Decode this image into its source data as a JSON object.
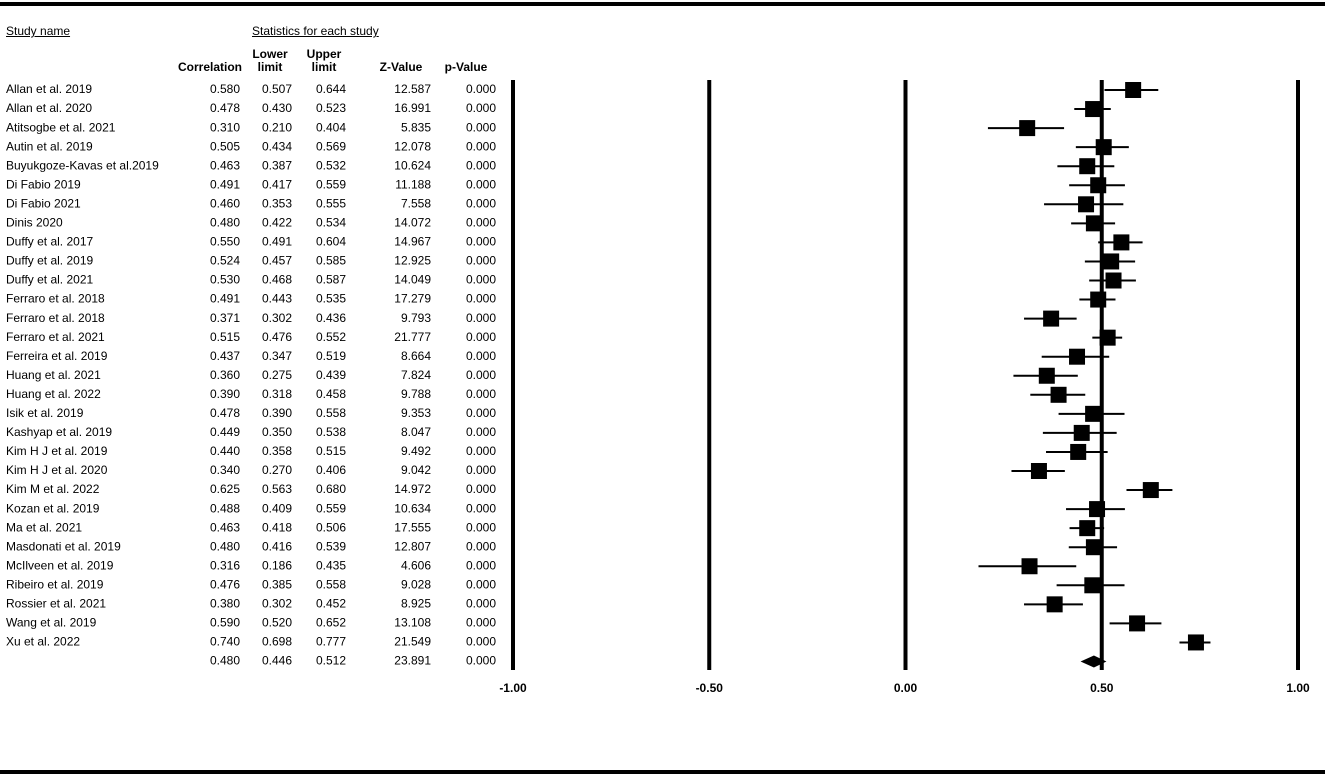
{
  "chart_data": {
    "type": "forest",
    "study_header": "Study name",
    "stats_header": "Statistics for each study",
    "categories": [
      "Allan et al. 2019",
      "Allan et al. 2020",
      "Atitsogbe et al. 2021",
      "Autin et al. 2019",
      "Buyukgoze-Kavas et al.2019",
      "Di Fabio 2019",
      "Di Fabio 2021",
      "Dinis 2020",
      "Duffy et al. 2017",
      "Duffy et al. 2019",
      "Duffy et al. 2021",
      "Ferraro et al. 2018",
      "Ferraro et al. 2018",
      "Ferraro et al. 2021",
      "Ferreira et al. 2019",
      "Huang et al. 2021",
      "Huang et al. 2022",
      "Isik et al. 2019",
      "Kashyap et al. 2019",
      "Kim H J et al. 2019",
      "Kim H J et al. 2020",
      "Kim M et al. 2022",
      "Kozan et al. 2019",
      "Ma et al. 2021",
      "Masdonati et al. 2019",
      "McIlveen et al. 2019",
      "Ribeiro et al. 2019",
      "Rossier et al. 2021",
      "Wang et al. 2019",
      "Xu et al. 2022"
    ],
    "columns": [
      {
        "name": "Correlation",
        "values": [
          0.58,
          0.478,
          0.31,
          0.505,
          0.463,
          0.491,
          0.46,
          0.48,
          0.55,
          0.524,
          0.53,
          0.491,
          0.371,
          0.515,
          0.437,
          0.36,
          0.39,
          0.478,
          0.449,
          0.44,
          0.34,
          0.625,
          0.488,
          0.463,
          0.48,
          0.316,
          0.476,
          0.38,
          0.59,
          0.74
        ],
        "value_labels": [
          "0.580",
          "0.478",
          "0.310",
          "0.505",
          "0.463",
          "0.491",
          "0.460",
          "0.480",
          "0.550",
          "0.524",
          "0.530",
          "0.491",
          "0.371",
          "0.515",
          "0.437",
          "0.360",
          "0.390",
          "0.478",
          "0.449",
          "0.440",
          "0.340",
          "0.625",
          "0.488",
          "0.463",
          "0.480",
          "0.316",
          "0.476",
          "0.380",
          "0.590",
          "0.740"
        ]
      },
      {
        "name": "Lower limit",
        "values": [
          0.507,
          0.43,
          0.21,
          0.434,
          0.387,
          0.417,
          0.353,
          0.422,
          0.491,
          0.457,
          0.468,
          0.443,
          0.302,
          0.476,
          0.347,
          0.275,
          0.318,
          0.39,
          0.35,
          0.358,
          0.27,
          0.563,
          0.409,
          0.418,
          0.416,
          0.186,
          0.385,
          0.302,
          0.52,
          0.698
        ],
        "value_labels": [
          "0.507",
          "0.430",
          "0.210",
          "0.434",
          "0.387",
          "0.417",
          "0.353",
          "0.422",
          "0.491",
          "0.457",
          "0.468",
          "0.443",
          "0.302",
          "0.476",
          "0.347",
          "0.275",
          "0.318",
          "0.390",
          "0.350",
          "0.358",
          "0.270",
          "0.563",
          "0.409",
          "0.418",
          "0.416",
          "0.186",
          "0.385",
          "0.302",
          "0.520",
          "0.698"
        ]
      },
      {
        "name": "Upper limit",
        "values": [
          0.644,
          0.523,
          0.404,
          0.569,
          0.532,
          0.559,
          0.555,
          0.534,
          0.604,
          0.585,
          0.587,
          0.535,
          0.436,
          0.552,
          0.519,
          0.439,
          0.458,
          0.558,
          0.538,
          0.515,
          0.406,
          0.68,
          0.559,
          0.506,
          0.539,
          0.435,
          0.558,
          0.452,
          0.652,
          0.777
        ],
        "value_labels": [
          "0.644",
          "0.523",
          "0.404",
          "0.569",
          "0.532",
          "0.559",
          "0.555",
          "0.534",
          "0.604",
          "0.585",
          "0.587",
          "0.535",
          "0.436",
          "0.552",
          "0.519",
          "0.439",
          "0.458",
          "0.558",
          "0.538",
          "0.515",
          "0.406",
          "0.680",
          "0.559",
          "0.506",
          "0.539",
          "0.435",
          "0.558",
          "0.452",
          "0.652",
          "0.777"
        ]
      },
      {
        "name": "Z-Value",
        "values": [
          12.587,
          16.991,
          5.835,
          12.078,
          10.624,
          11.188,
          7.558,
          14.072,
          14.967,
          12.925,
          14.049,
          17.279,
          9.793,
          21.777,
          8.664,
          7.824,
          9.788,
          9.353,
          8.047,
          9.492,
          9.042,
          14.972,
          10.634,
          17.555,
          12.807,
          4.606,
          9.028,
          8.925,
          13.108,
          21.549
        ]
      },
      {
        "name": "p-Value",
        "values": [
          0,
          0,
          0,
          0,
          0,
          0,
          0,
          0,
          0,
          0,
          0,
          0,
          0,
          0,
          0,
          0,
          0,
          0,
          0,
          0,
          0,
          0,
          0,
          0,
          0,
          0,
          0,
          0,
          0,
          0
        ],
        "value_labels": [
          "0.000",
          "0.000",
          "0.000",
          "0.000",
          "0.000",
          "0.000",
          "0.000",
          "0.000",
          "0.000",
          "0.000",
          "0.000",
          "0.000",
          "0.000",
          "0.000",
          "0.000",
          "0.000",
          "0.000",
          "0.000",
          "0.000",
          "0.000",
          "0.000",
          "0.000",
          "0.000",
          "0.000",
          "0.000",
          "0.000",
          "0.000",
          "0.000",
          "0.000",
          "0.000"
        ]
      }
    ],
    "summary": {
      "values": [
        0.48,
        0.446,
        0.512,
        23.891,
        0
      ],
      "value_labels": [
        "0.480",
        "0.446",
        "0.512",
        "23.891",
        "0.000"
      ]
    },
    "xlim": [
      -1,
      1
    ],
    "xticks": [
      {
        "value": -1,
        "label": "-1.00"
      },
      {
        "value": -0.5,
        "label": "-0.50"
      },
      {
        "value": 0,
        "label": "0.00"
      },
      {
        "value": 0.5,
        "label": "0.50"
      },
      {
        "value": 1,
        "label": "1.00"
      }
    ],
    "grid": true,
    "color": "#000000"
  }
}
